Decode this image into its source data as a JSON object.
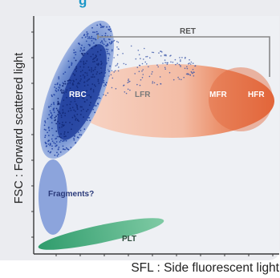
{
  "header": {
    "partial_title": "g"
  },
  "axes": {
    "y_label": "FSC : Forward scattered light",
    "x_label": "SFL : Side fluorescent light"
  },
  "regions": {
    "ret": "RET",
    "rbc": "RBC",
    "lfr": "LFR",
    "mfr": "MFR",
    "hfr": "HFR",
    "fragments": "Fragments?",
    "plt": "PLT"
  },
  "colors": {
    "title": "#1a97c8",
    "panel_bg": "#ebecf0",
    "rbc_cluster": "#1f3d9c",
    "rbc_halo": "#7f9fd8",
    "lfr": "#f5c9b8",
    "mfr": "#ec9470",
    "hfr": "#e2653a",
    "fragments": "#8ca4dc",
    "plt": "#3aa87a",
    "bracket": "#888888"
  }
}
